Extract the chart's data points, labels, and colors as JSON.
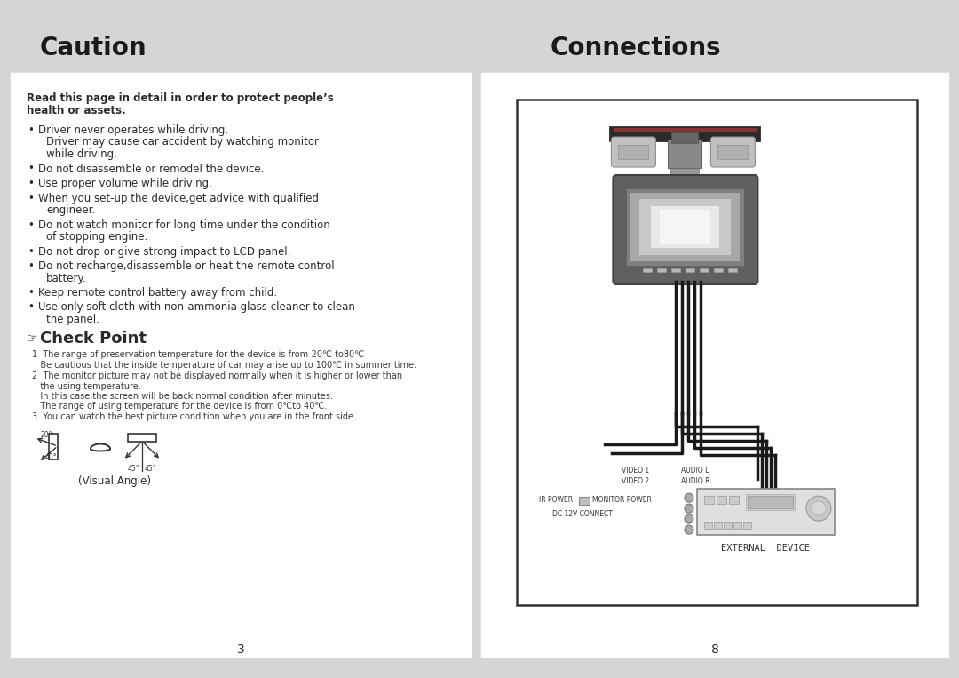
{
  "bg_color": "#d5d5d5",
  "header_bg": "#d5d5d5",
  "page_bg": "#ffffff",
  "header_left_title": "Caution",
  "header_right_title": "Connections",
  "header_title_color": "#1a1a1a",
  "left_bold_text_line1": "Read this page in detail in order to protect people’s",
  "left_bold_text_line2": "health or assets.",
  "bullet_items": [
    [
      "Driver never operates while driving.",
      "Driver may cause car accident by watching monitor",
      "while driving."
    ],
    [
      "Do not disassemble or remodel the device."
    ],
    [
      "Use proper volume while driving."
    ],
    [
      "When you set-up the device,get advice with qualified",
      "engineer."
    ],
    [
      "Do not watch monitor for long time under the condition",
      "of stopping engine."
    ],
    [
      "Do not drop or give strong impact to LCD panel."
    ],
    [
      "Do not recharge,disassemble or heat the remote control",
      "battery."
    ],
    [
      "Keep remote control battery away from child."
    ],
    [
      "Use only soft cloth with non-ammonia glass cleaner to clean",
      "the panel."
    ]
  ],
  "check_point_title": "Check Point",
  "check_items": [
    [
      "1  The range of preservation temperature for the device is from-20℃ to80℃",
      "   Be cautious that the inside temperature of car may arise up to 100℃ in summer time."
    ],
    [
      "2  The monitor picture may not be displayed normally when it is higher or lower than",
      "   the using temperature.",
      "   In this case,the screen will be back normal condition after minutes.",
      "   The range of using temperature for the device is from 0℃to 40℃."
    ],
    [
      "3  You can watch the best picture condition when you are in the front side."
    ]
  ],
  "visual_angle_label": "(Visual Angle)",
  "page_num_left": "3",
  "page_num_right": "8",
  "text_color": "#2a2a2a",
  "small_text_color": "#3a3a3a"
}
